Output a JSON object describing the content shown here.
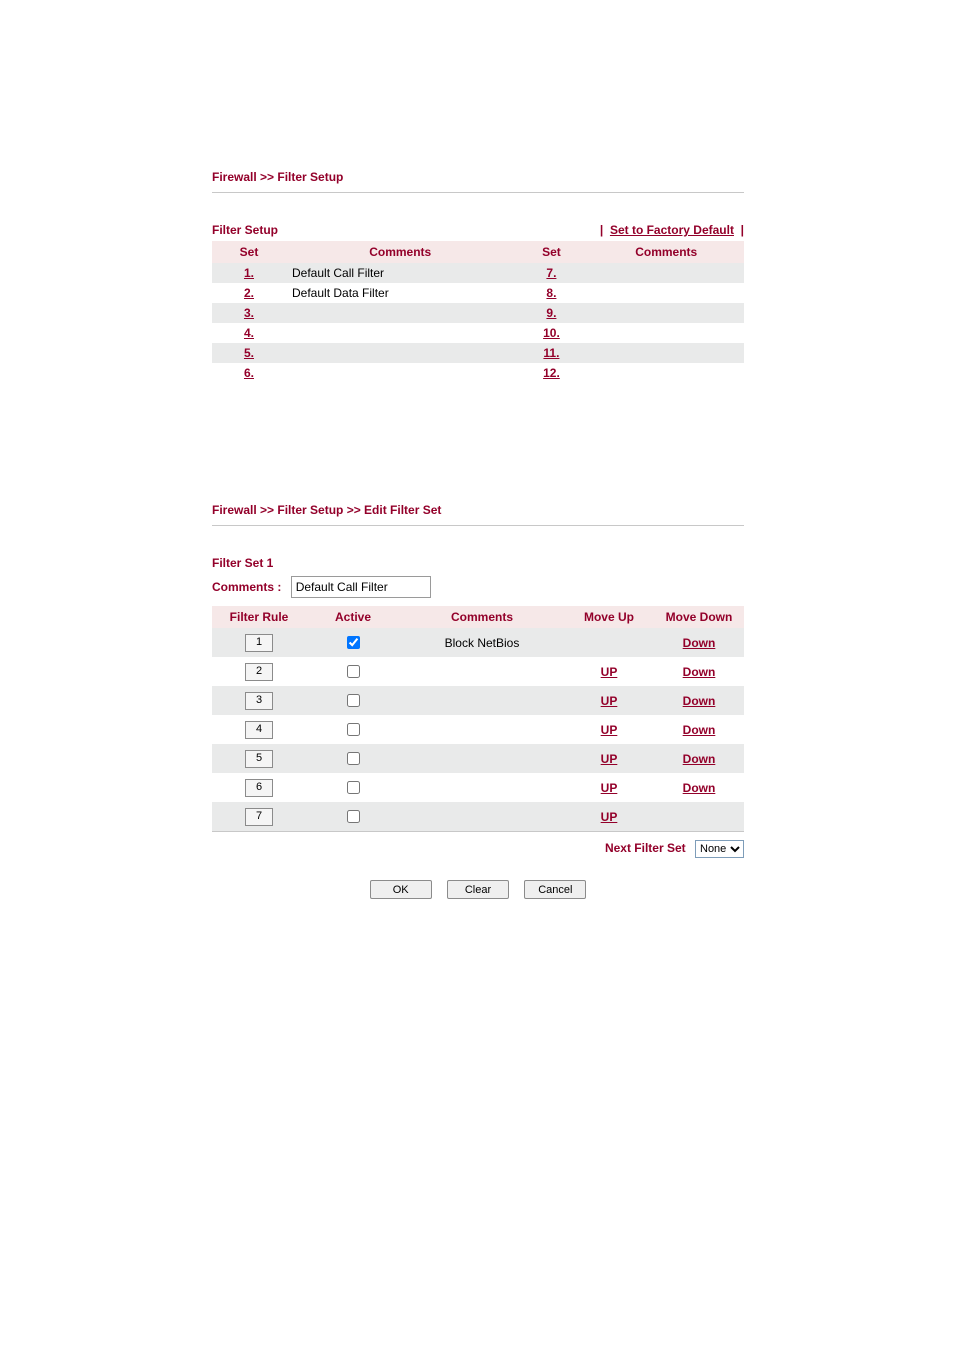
{
  "section1": {
    "breadcrumb": "Firewall >> Filter Setup",
    "title": "Filter Setup",
    "factory_default_label": "Set to Factory Default",
    "columns": {
      "set": "Set",
      "comments": "Comments"
    },
    "rows_left": [
      {
        "n": "1.",
        "comment": "Default Call Filter"
      },
      {
        "n": "2.",
        "comment": "Default Data Filter"
      },
      {
        "n": "3.",
        "comment": ""
      },
      {
        "n": "4.",
        "comment": ""
      },
      {
        "n": "5.",
        "comment": ""
      },
      {
        "n": "6.",
        "comment": ""
      }
    ],
    "rows_right": [
      {
        "n": "7.",
        "comment": ""
      },
      {
        "n": "8.",
        "comment": ""
      },
      {
        "n": "9.",
        "comment": ""
      },
      {
        "n": "10.",
        "comment": ""
      },
      {
        "n": "11.",
        "comment": ""
      },
      {
        "n": "12.",
        "comment": ""
      }
    ]
  },
  "section2": {
    "breadcrumb": "Firewall >> Filter Setup >> Edit Filter Set",
    "set_title": "Filter Set 1",
    "comments_label": "Comments :",
    "comments_value": "Default Call Filter",
    "columns": {
      "rule": "Filter Rule",
      "active": "Active",
      "comments": "Comments",
      "up": "Move Up",
      "down": "Move Down"
    },
    "up_label": "UP",
    "down_label": "Down",
    "rows": [
      {
        "n": "1",
        "active": true,
        "comment": "Block NetBios",
        "up": false,
        "down": true
      },
      {
        "n": "2",
        "active": false,
        "comment": "",
        "up": true,
        "down": true
      },
      {
        "n": "3",
        "active": false,
        "comment": "",
        "up": true,
        "down": true
      },
      {
        "n": "4",
        "active": false,
        "comment": "",
        "up": true,
        "down": true
      },
      {
        "n": "5",
        "active": false,
        "comment": "",
        "up": true,
        "down": true
      },
      {
        "n": "6",
        "active": false,
        "comment": "",
        "up": true,
        "down": true
      },
      {
        "n": "7",
        "active": false,
        "comment": "",
        "up": true,
        "down": false
      }
    ],
    "next_filter_label": "Next Filter Set",
    "next_filter_value": "None",
    "buttons": {
      "ok": "OK",
      "clear": "Clear",
      "cancel": "Cancel"
    }
  },
  "colors": {
    "accent": "#93002a",
    "header_bg": "#f6e8e8",
    "alt_row": "#e9eaea"
  }
}
